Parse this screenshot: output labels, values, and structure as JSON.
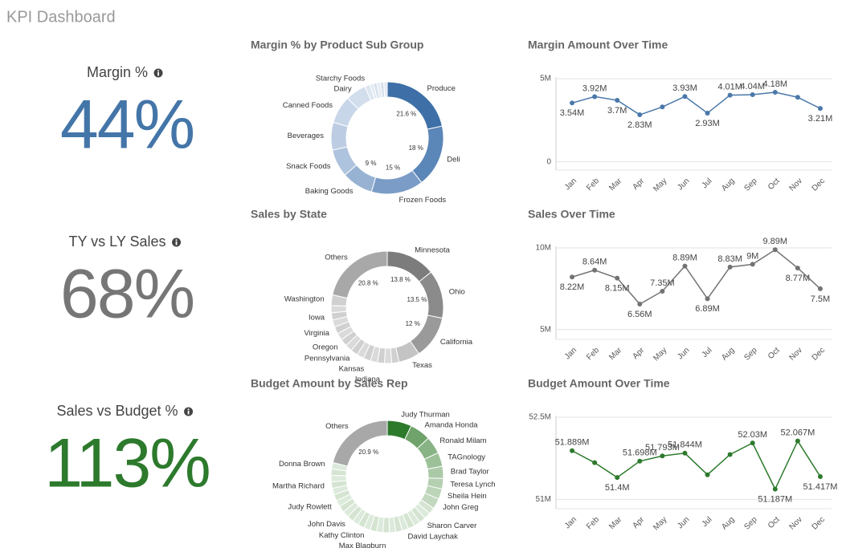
{
  "title": "KPI Dashboard",
  "kpis": [
    {
      "label": "Margin %",
      "value": "44%",
      "color": "#4475a8"
    },
    {
      "label": "TY vs LY Sales",
      "value": "68%",
      "color": "#767676"
    },
    {
      "label": "Sales vs Budget %",
      "value": "113%",
      "color": "#2d7a2d"
    }
  ],
  "chart_data": [
    {
      "type": "donut",
      "title": "Margin % by Product Sub Group",
      "categories": [
        "Produce",
        "Deli",
        "Frozen Foods",
        "Baking Goods",
        "Snack Foods",
        "Beverages",
        "Canned Foods",
        "Dairy",
        "Starchy Foods",
        null,
        null,
        null,
        null,
        null
      ],
      "values": [
        21.6,
        18,
        15,
        9,
        8,
        8,
        8,
        6,
        1.5,
        1,
        1,
        1,
        1,
        1
      ],
      "value_labels": [
        "21.6 %",
        "18 %",
        "15 %",
        "9 %",
        null,
        null,
        null,
        null,
        null,
        null,
        null,
        null,
        null,
        null
      ],
      "colors": [
        "#3e70a7",
        "#5b86b8",
        "#7a9cc7",
        "#98b2d3",
        "#aec3dd",
        "#bccde3",
        "#c8d6e9",
        "#d3deed",
        "#dde6f1",
        "#e3eaf3",
        "#d6e0ec",
        "#e3eaf3",
        "#d6e0ec",
        "#e3eaf3"
      ]
    },
    {
      "type": "line",
      "title": "Margin Amount Over Time",
      "categories": [
        "Jan",
        "Feb",
        "Mar",
        "Apr",
        "May",
        "Jun",
        "Jul",
        "Aug",
        "Sep",
        "Oct",
        "Nov",
        "Dec"
      ],
      "values": [
        3540000,
        3920000,
        3700000,
        2830000,
        3300000,
        3930000,
        2930000,
        4010000,
        4040000,
        4180000,
        3880000,
        3210000
      ],
      "value_labels": [
        "3.54M",
        "3.92M",
        "3.7M",
        "2.83M",
        null,
        "3.93M",
        "2.93M",
        "4.01M",
        "4.04M",
        "4.18M",
        null,
        "3.21M"
      ],
      "color": "#4a78aa",
      "ylim": [
        -500000,
        5100000
      ],
      "yticks": [
        0,
        {
          "value": 5000000,
          "label": "5M"
        }
      ],
      "grid": true
    },
    {
      "type": "donut",
      "title": "Sales by State",
      "categories": [
        "Minnesota",
        "Ohio",
        "California",
        "Texas",
        null,
        null,
        "Indiana",
        null,
        "Kansas",
        null,
        "Pennsylvania",
        null,
        "Oregon",
        null,
        "Virginia",
        null,
        "Iowa",
        null,
        "Washington",
        "Others"
      ],
      "values": [
        13.8,
        13.5,
        12,
        6,
        2,
        2,
        2,
        2,
        2,
        2,
        2,
        2,
        2,
        2,
        2,
        2,
        2,
        2,
        3,
        20.8
      ],
      "value_labels": [
        "13.8 %",
        "13.5 %",
        "12 %",
        null,
        null,
        null,
        null,
        null,
        null,
        null,
        null,
        null,
        null,
        null,
        null,
        null,
        null,
        null,
        null,
        "20.8 %"
      ],
      "colors": [
        "#7c7c7c",
        "#8b8b8b",
        "#9a9a9a",
        "#c4c4c4",
        "#d0d0d0",
        "#dadada",
        "#d0d0d0",
        "#dadada",
        "#d0d0d0",
        "#dadada",
        "#d0d0d0",
        "#dadada",
        "#d0d0d0",
        "#dadada",
        "#d0d0d0",
        "#dadada",
        "#d0d0d0",
        "#dadada",
        "#d0d0d0",
        "#a8a8a8"
      ]
    },
    {
      "type": "line",
      "title": "Sales Over Time",
      "categories": [
        "Jan",
        "Feb",
        "Mar",
        "Apr",
        "May",
        "Jun",
        "Jul",
        "Aug",
        "Sep",
        "Oct",
        "Nov",
        "Dec"
      ],
      "values": [
        8220000,
        8640000,
        8150000,
        6560000,
        7350000,
        8890000,
        6890000,
        8830000,
        9000000,
        9890000,
        8770000,
        7500000
      ],
      "value_labels": [
        "8.22M",
        "8.64M",
        "8.15M",
        "6.56M",
        "7.35M",
        "8.89M",
        "6.89M",
        "8.83M",
        "9M",
        "9.89M",
        "8.77M",
        "7.5M"
      ],
      "color": "#737373",
      "ylim": [
        4400000,
        10100000
      ],
      "yticks": [
        {
          "value": 5000000,
          "label": "5M"
        },
        {
          "value": 10000000,
          "label": "10M"
        }
      ],
      "grid": true
    },
    {
      "type": "donut",
      "title": "Budget Amount by Sales Rep",
      "categories": [
        "Judy Thurman",
        "Amanda Honda",
        "Ronald Milam",
        "TAGnology",
        "Brad Taylor",
        "Teresa Lynch",
        "Sheila Hein",
        "John Greg",
        null,
        null,
        "Sharon Carver",
        null,
        null,
        "David Laychak",
        null,
        null,
        "Max Blagburn",
        null,
        null,
        "Kathy Clinton",
        null,
        null,
        "John Davis",
        null,
        null,
        "Judy Rowlett",
        null,
        null,
        "Martha Richard",
        null,
        null,
        "Donna Brown",
        "Others"
      ],
      "values": [
        7,
        6,
        5,
        4,
        3.5,
        3,
        3,
        3,
        1.85,
        1.85,
        1.85,
        1.85,
        1.85,
        1.85,
        1.85,
        1.85,
        1.85,
        1.85,
        1.85,
        1.85,
        1.85,
        1.85,
        1.85,
        1.85,
        1.85,
        1.85,
        1.85,
        1.85,
        1.85,
        1.85,
        1.85,
        1.85,
        20.9
      ],
      "value_labels": [
        null,
        null,
        null,
        null,
        null,
        null,
        null,
        null,
        null,
        null,
        null,
        null,
        null,
        null,
        null,
        null,
        null,
        null,
        null,
        null,
        null,
        null,
        null,
        null,
        null,
        null,
        null,
        null,
        null,
        null,
        null,
        null,
        "20.9 %"
      ],
      "colors": [
        "#2d7a2d",
        "#6fa36b",
        "#88b384",
        "#9cc098",
        "#abc9a7",
        "#b5cfb1",
        "#bcd4b8",
        "#c2d8bf",
        "#d4e4d1",
        "#dceadb",
        "#d4e4d1",
        "#dceadb",
        "#d4e4d1",
        "#dceadb",
        "#d4e4d1",
        "#dceadb",
        "#d4e4d1",
        "#dceadb",
        "#d4e4d1",
        "#dceadb",
        "#d4e4d1",
        "#dceadb",
        "#d4e4d1",
        "#dceadb",
        "#d4e4d1",
        "#dceadb",
        "#d4e4d1",
        "#dceadb",
        "#d4e4d1",
        "#dceadb",
        "#d4e4d1",
        "#dceadb",
        "#a8a8a8"
      ]
    },
    {
      "type": "line",
      "title": "Budget Amount Over Time",
      "categories": [
        "Jan",
        "Feb",
        "Mar",
        "Apr",
        "May",
        "Jun",
        "Jul",
        "Aug",
        "Sep",
        "Oct",
        "Nov",
        "Dec"
      ],
      "values": [
        51889000,
        51670000,
        51400000,
        51698000,
        51793000,
        51844000,
        51450000,
        51820000,
        52030000,
        51187000,
        52067000,
        51417000
      ],
      "value_labels": [
        "51.889M",
        null,
        "51.4M",
        "51.698M",
        "51.793M",
        "51.844M",
        null,
        null,
        "52.03M",
        "51.187M",
        "52.067M",
        "51.417M"
      ],
      "color": "#2d7a2d",
      "ylim": [
        50830000,
        52530000
      ],
      "yticks": [
        {
          "value": 51000000,
          "label": "51M"
        },
        {
          "value": 52500000,
          "label": "52.5M"
        }
      ],
      "grid": true
    }
  ]
}
